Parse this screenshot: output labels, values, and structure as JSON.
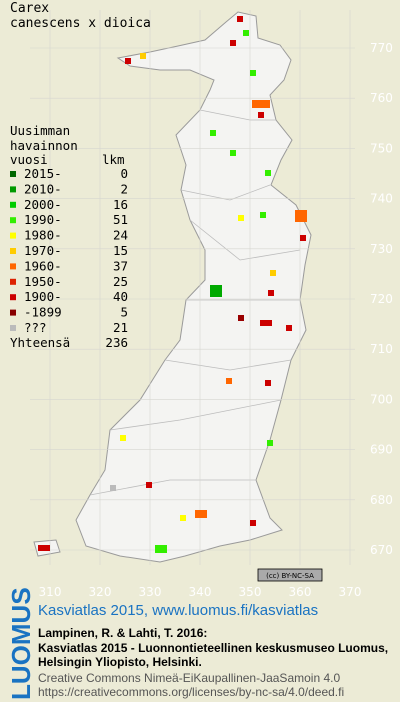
{
  "title": [
    "Carex",
    "canescens x dioica"
  ],
  "legend": {
    "heading": [
      "Uusimman",
      "havainnon",
      "vuosi",
      "lkm"
    ],
    "items": [
      {
        "label": "2015-",
        "count": 0,
        "color": "#006600"
      },
      {
        "label": "2010-",
        "count": 2,
        "color": "#009900"
      },
      {
        "label": "2000-",
        "count": 16,
        "color": "#00cc00"
      },
      {
        "label": "1990-",
        "count": 51,
        "color": "#33ee00"
      },
      {
        "label": "1980-",
        "count": 24,
        "color": "#ffff00"
      },
      {
        "label": "1970-",
        "count": 15,
        "color": "#ffcc00"
      },
      {
        "label": "1960-",
        "count": 37,
        "color": "#ff6600"
      },
      {
        "label": "1950-",
        "count": 25,
        "color": "#dd2200"
      },
      {
        "label": "1900-",
        "count": 40,
        "color": "#cc0000"
      },
      {
        "label": "-1899",
        "count": 5,
        "color": "#880000"
      },
      {
        "label": "???",
        "count": 21,
        "color": "#bbbbbb"
      }
    ],
    "total": {
      "label": "Yhteensä",
      "count": 236
    }
  },
  "grid": {
    "north": [
      770,
      760,
      750,
      740,
      730,
      720,
      710,
      700,
      690,
      680,
      670
    ],
    "east": [
      310,
      320,
      330,
      340,
      350,
      360,
      370
    ]
  },
  "footer": {
    "badge": "(cc) BY-NC-SA",
    "logo": "LUOMUS",
    "site": "Kasviatlas 2015, www.luomus.fi/kasviatlas",
    "citation": [
      "Lampinen, R. & Lahti, T. 2016:",
      "Kasviatlas 2015 - Luonnontieteellinen keskusmuseo Luomus,",
      "Helsingin Yliopisto, Helsinki."
    ],
    "license": [
      "Creative Commons Nimeä-EiKaupallinen-JaaSamoin 4.0",
      "https://creativecommons.org/licenses/by-nc-sa/4.0/deed.fi"
    ]
  }
}
